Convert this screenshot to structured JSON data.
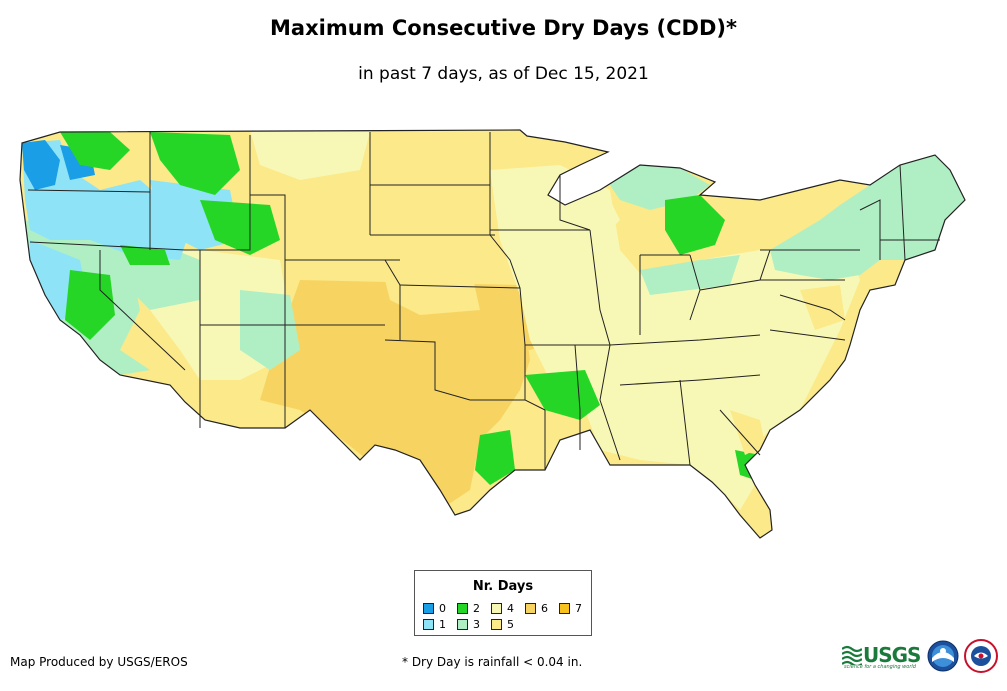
{
  "title": "Maximum Consecutive Dry Days (CDD)*",
  "subtitle": "in past 7 days, as of Dec 15, 2021",
  "legend": {
    "title": "Nr. Days",
    "items": [
      {
        "label": "0",
        "color": "#1a9ee6"
      },
      {
        "label": "1",
        "color": "#8fe3f7"
      },
      {
        "label": "2",
        "color": "#26d626"
      },
      {
        "label": "3",
        "color": "#b0efc4"
      },
      {
        "label": "4",
        "color": "#f8f8b6"
      },
      {
        "label": "5",
        "color": "#fbe98a"
      },
      {
        "label": "6",
        "color": "#f7d462"
      },
      {
        "label": "7",
        "color": "#f8c21e"
      }
    ]
  },
  "credit": "Map Produced by USGS/EROS",
  "footnote": "* Dry Day is rainfall < 0.04 in.",
  "logos": {
    "usgs_text": "USGS",
    "usgs_tagline": "science for a changing world",
    "noaa_icon": "noaa-logo-icon",
    "nws_icon": "nws-logo-icon"
  }
}
